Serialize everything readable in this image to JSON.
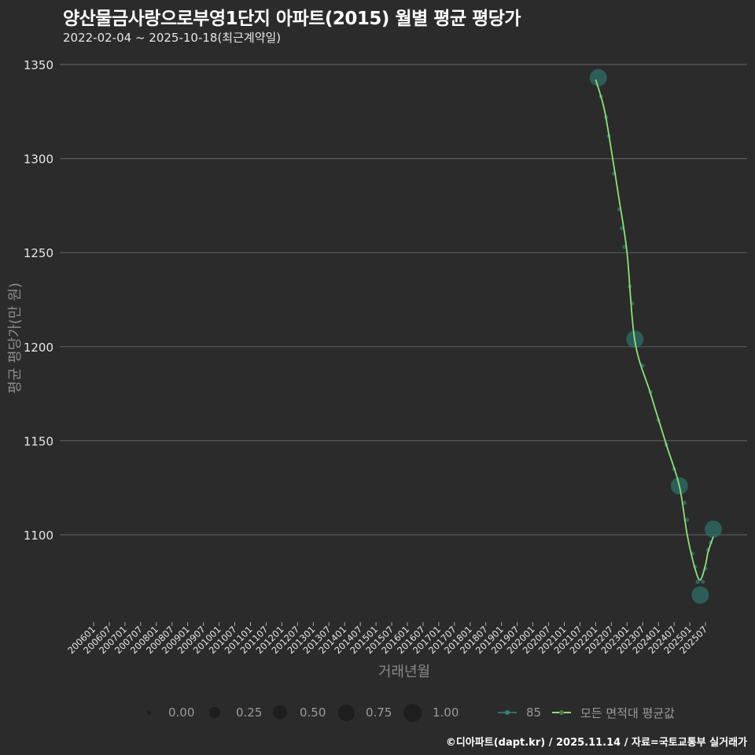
{
  "header": {
    "title": "양산물금사랑으로부영1단지 아파트(2015) 월별 평균 평당가",
    "subtitle": "2022-02-04 ~ 2025-10-18(최근계약일)"
  },
  "footer": {
    "credit": "©디아파트(dapt.kr) / 2025.11.14 / 자료=국토교통부 실거래가"
  },
  "colors": {
    "background": "#2b2b2b",
    "grid": "#5a5a5a",
    "series_85": "#2f6f6a",
    "series_avg": "#8ee07a"
  },
  "chart_data": {
    "type": "line",
    "title": "양산물금사랑으로부영1단지 아파트(2015) 월별 평균 평당가",
    "subtitle": "2022-02-04 ~ 2025-10-18(최근계약일)",
    "xlabel": "거래년월",
    "ylabel": "평균 평당가(만 원)",
    "ylim": [
      1055,
      1360
    ],
    "yticks": [
      1100,
      1150,
      1200,
      1250,
      1300,
      1350
    ],
    "xticks": [
      "200601",
      "200607",
      "200701",
      "200707",
      "200801",
      "200807",
      "200901",
      "200907",
      "201001",
      "201007",
      "201101",
      "201107",
      "201201",
      "201207",
      "201301",
      "201307",
      "201401",
      "201407",
      "201501",
      "201507",
      "201601",
      "201607",
      "201701",
      "201707",
      "201801",
      "201807",
      "201901",
      "201907",
      "202001",
      "202007",
      "202101",
      "202107",
      "202201",
      "202207",
      "202301",
      "202307",
      "202401",
      "202407",
      "202501",
      "202507"
    ],
    "grid": true,
    "legend_position": "bottom",
    "size_legend": {
      "title": "",
      "entries": [
        "0.00",
        "0.25",
        "0.50",
        "0.75",
        "1.00"
      ]
    },
    "series": [
      {
        "name": "85",
        "kind": "scatter-size",
        "points": [
          {
            "x": "202202",
            "y": 1343,
            "size": 1.0
          },
          {
            "x": "202203",
            "y": 1333,
            "size": 0.1
          },
          {
            "x": "202205",
            "y": 1322,
            "size": 0.1
          },
          {
            "x": "202206",
            "y": 1312,
            "size": 0.1
          },
          {
            "x": "202208",
            "y": 1292,
            "size": 0.1
          },
          {
            "x": "202210",
            "y": 1273,
            "size": 0.1
          },
          {
            "x": "202211",
            "y": 1263,
            "size": 0.1
          },
          {
            "x": "202212",
            "y": 1253,
            "size": 0.1
          },
          {
            "x": "202302",
            "y": 1232,
            "size": 0.1
          },
          {
            "x": "202303",
            "y": 1223,
            "size": 0.1
          },
          {
            "x": "202304",
            "y": 1204,
            "size": 1.0
          },
          {
            "x": "202307",
            "y": 1190,
            "size": 0.1
          },
          {
            "x": "202310",
            "y": 1176,
            "size": 0.1
          },
          {
            "x": "202401",
            "y": 1161,
            "size": 0.1
          },
          {
            "x": "202404",
            "y": 1148,
            "size": 0.1
          },
          {
            "x": "202407",
            "y": 1135,
            "size": 0.1
          },
          {
            "x": "202409",
            "y": 1126,
            "size": 1.0
          },
          {
            "x": "202411",
            "y": 1117,
            "size": 0.1
          },
          {
            "x": "202412",
            "y": 1108,
            "size": 0.1
          },
          {
            "x": "202502",
            "y": 1090,
            "size": 0.1
          },
          {
            "x": "202503",
            "y": 1083,
            "size": 0.1
          },
          {
            "x": "202504",
            "y": 1075,
            "size": 0.1
          },
          {
            "x": "202505",
            "y": 1068,
            "size": 1.0
          },
          {
            "x": "202506",
            "y": 1075,
            "size": 0.1
          },
          {
            "x": "202507",
            "y": 1082,
            "size": 0.1
          },
          {
            "x": "202508",
            "y": 1092,
            "size": 0.1
          },
          {
            "x": "202509",
            "y": 1096,
            "size": 0.1
          },
          {
            "x": "202510",
            "y": 1103,
            "size": 1.0
          }
        ]
      },
      {
        "name": "모든 면적대 평균값",
        "kind": "smooth-line",
        "points": [
          {
            "x": "202201",
            "y": 1342
          },
          {
            "x": "202204",
            "y": 1328
          },
          {
            "x": "202206",
            "y": 1313
          },
          {
            "x": "202210",
            "y": 1278
          },
          {
            "x": "202301",
            "y": 1250
          },
          {
            "x": "202304",
            "y": 1203
          },
          {
            "x": "202310",
            "y": 1175
          },
          {
            "x": "202404",
            "y": 1148
          },
          {
            "x": "202409",
            "y": 1126
          },
          {
            "x": "202412",
            "y": 1100
          },
          {
            "x": "202503",
            "y": 1082
          },
          {
            "x": "202505",
            "y": 1076
          },
          {
            "x": "202507",
            "y": 1084
          },
          {
            "x": "202508",
            "y": 1091
          },
          {
            "x": "202510",
            "y": 1099
          }
        ]
      }
    ]
  },
  "legend": {
    "sizes": [
      {
        "label": "0.00",
        "r": 2
      },
      {
        "label": "0.25",
        "r": 6
      },
      {
        "label": "0.50",
        "r": 8
      },
      {
        "label": "0.75",
        "r": 10
      },
      {
        "label": "1.00",
        "r": 11
      }
    ],
    "series": [
      {
        "label": "85",
        "color": "#2f6f6a"
      },
      {
        "label": "모든 면적대 평균값",
        "color": "#8ee07a"
      }
    ]
  }
}
